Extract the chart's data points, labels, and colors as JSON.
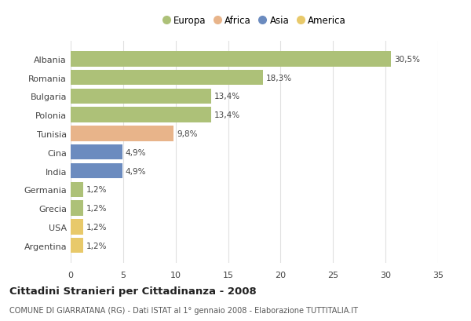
{
  "countries": [
    "Albania",
    "Romania",
    "Bulgaria",
    "Polonia",
    "Tunisia",
    "Cina",
    "India",
    "Germania",
    "Grecia",
    "USA",
    "Argentina"
  ],
  "values": [
    30.5,
    18.3,
    13.4,
    13.4,
    9.8,
    4.9,
    4.9,
    1.2,
    1.2,
    1.2,
    1.2
  ],
  "labels": [
    "30,5%",
    "18,3%",
    "13,4%",
    "13,4%",
    "9,8%",
    "4,9%",
    "4,9%",
    "1,2%",
    "1,2%",
    "1,2%",
    "1,2%"
  ],
  "categories": [
    "Europa",
    "Africa",
    "Asia",
    "America"
  ],
  "bar_colors": [
    "#adc178",
    "#adc178",
    "#adc178",
    "#adc178",
    "#e8b48a",
    "#6b8bbf",
    "#6b8bbf",
    "#adc178",
    "#adc178",
    "#e8c96a",
    "#e8c96a"
  ],
  "legend_colors": [
    "#adc178",
    "#e8b48a",
    "#6b8bbf",
    "#e8c96a"
  ],
  "title": "Cittadini Stranieri per Cittadinanza - 2008",
  "subtitle": "COMUNE DI GIARRATANA (RG) - Dati ISTAT al 1° gennaio 2008 - Elaborazione TUTTITALIA.IT",
  "xlim": [
    0,
    35
  ],
  "xticks": [
    0,
    5,
    10,
    15,
    20,
    25,
    30,
    35
  ],
  "background_color": "#ffffff",
  "grid_color": "#e0e0e0",
  "bar_height": 0.82
}
